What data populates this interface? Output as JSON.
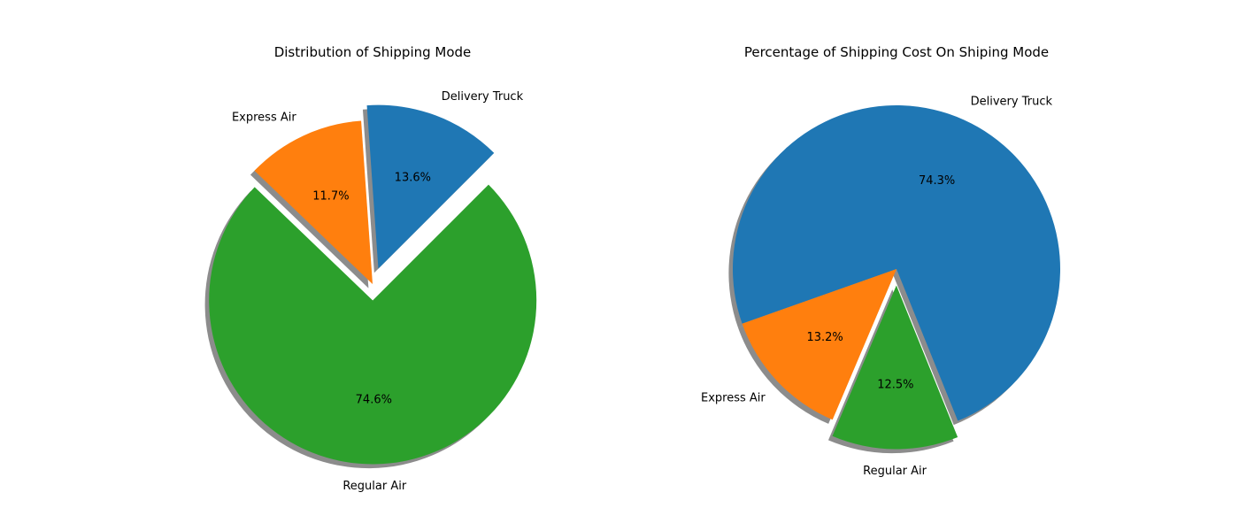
{
  "chart_data": [
    {
      "type": "pie",
      "title": "Distribution of Shipping Mode",
      "labels": [
        "Delivery Truck",
        "Express Air",
        "Regular Air"
      ],
      "values": [
        13.6,
        11.7,
        74.6
      ],
      "percent_labels": [
        "13.6%",
        "11.7%",
        "74.6%"
      ],
      "colors": [
        "#1f77b4",
        "#ff7f0e",
        "#2ca02c"
      ],
      "explode": [
        0.1,
        0,
        0.1
      ],
      "start_angle": 45,
      "shadow": true
    },
    {
      "type": "pie",
      "title": "Percentage of Shipping Cost On Shiping Mode",
      "labels": [
        "Delivery Truck",
        "Express Air",
        "Regular Air"
      ],
      "values": [
        74.3,
        13.2,
        12.5
      ],
      "percent_labels": [
        "74.3%",
        "13.2%",
        "12.5%"
      ],
      "colors": [
        "#1f77b4",
        "#ff7f0e",
        "#2ca02c"
      ],
      "explode": [
        0,
        0,
        0.1
      ],
      "start_angle": -68,
      "shadow": true
    }
  ]
}
